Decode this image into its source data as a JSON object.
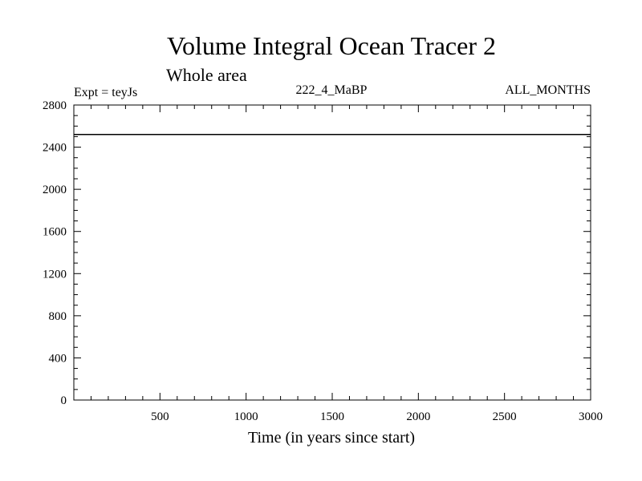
{
  "chart_data": {
    "type": "line",
    "title": "Volume Integral Ocean Tracer 2",
    "subtitle": "Whole area",
    "annotations": {
      "left": "Expt = teyJs",
      "center": "222_4_MaBP",
      "right": "ALL_MONTHS"
    },
    "xlabel": "Time (in years since start)",
    "ylabel": "",
    "xlim": [
      0,
      3000
    ],
    "ylim": [
      0,
      2800
    ],
    "x_ticks": [
      500,
      1000,
      1500,
      2000,
      2500,
      3000
    ],
    "y_ticks": [
      0,
      400,
      800,
      1200,
      1600,
      2000,
      2400,
      2800
    ],
    "x_tick_labels": [
      "500",
      "1000",
      "1500",
      "2000",
      "2500",
      "3000"
    ],
    "y_tick_labels": [
      "0",
      "400",
      "800",
      "1200",
      "1600",
      "2000",
      "2400",
      "2800"
    ],
    "grid": false,
    "series": [
      {
        "x": [
          0,
          3000
        ],
        "y": [
          2520,
          2520
        ]
      }
    ],
    "colors": {
      "line": "#000000",
      "axes": "#000000",
      "background": "#ffffff"
    }
  }
}
